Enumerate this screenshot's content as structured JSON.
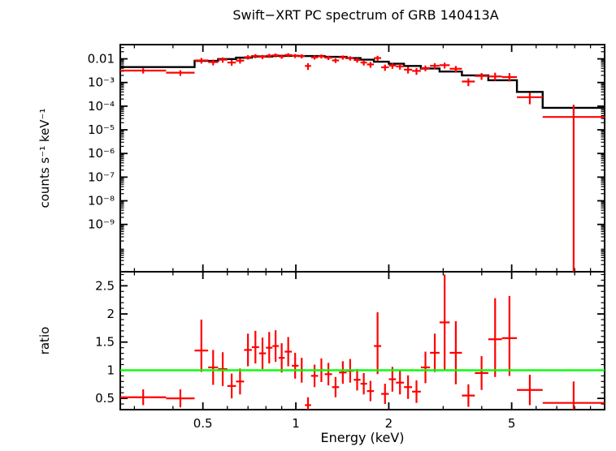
{
  "figure": {
    "title": "Swift−XRT PC spectrum of GRB 140413A",
    "xlabel": "Energy (keV)",
    "ylabel_top": "counts s⁻¹ keV⁻¹",
    "ylabel_bottom": "ratio"
  },
  "colors": {
    "data": "#ff0000",
    "model": "#000000",
    "reference_line": "#00ff00",
    "axis": "#000000",
    "text": "#000000",
    "background": "#ffffff"
  },
  "chart_data": [
    {
      "type": "scatter",
      "name": "spectrum-panel",
      "title": "Swift−XRT PC spectrum of GRB 140413A",
      "xlabel": "Energy (keV)",
      "ylabel": "counts s⁻¹ keV⁻¹",
      "xscale": "log",
      "yscale": "log",
      "xlim": [
        0.27,
        10
      ],
      "ylim": [
        1e-11,
        0.04
      ],
      "xticks": [
        0.5,
        1,
        2,
        5
      ],
      "xtick_labels": [
        "0.5",
        "1",
        "2",
        "5"
      ],
      "xminor": [
        0.3,
        0.4,
        0.6,
        0.7,
        0.8,
        0.9,
        3,
        4,
        6,
        7,
        8,
        9
      ],
      "ytick_values": [
        0.01,
        0.001,
        0.0001,
        1e-05,
        1e-06,
        1e-07,
        1e-08,
        1e-09
      ],
      "ytick_labels": [
        "0.01",
        "10⁻³",
        "10⁻⁴",
        "10⁻⁵",
        "10⁻⁶",
        "10⁻⁷",
        "10⁻⁸",
        "10⁻⁹"
      ],
      "point_format": [
        "x_low_keV",
        "x_high_keV",
        "value",
        "err_low_value",
        "err_high_value"
      ],
      "points": [
        [
          0.27,
          0.38,
          0.0032,
          0.0024,
          0.004
        ],
        [
          0.38,
          0.47,
          0.0026,
          0.0019,
          0.0033
        ],
        [
          0.47,
          0.52,
          0.0086,
          0.0063,
          0.0109
        ],
        [
          0.52,
          0.56,
          0.0073,
          0.0053,
          0.0093
        ],
        [
          0.56,
          0.6,
          0.0092,
          0.0069,
          0.0115
        ],
        [
          0.6,
          0.64,
          0.007,
          0.0051,
          0.0089
        ],
        [
          0.64,
          0.68,
          0.0084,
          0.0063,
          0.0105
        ],
        [
          0.68,
          0.72,
          0.0118,
          0.0093,
          0.0143
        ],
        [
          0.72,
          0.76,
          0.0132,
          0.0106,
          0.0158
        ],
        [
          0.76,
          0.8,
          0.0122,
          0.0097,
          0.0147
        ],
        [
          0.8,
          0.84,
          0.0136,
          0.011,
          0.0162
        ],
        [
          0.84,
          0.88,
          0.0142,
          0.0115,
          0.0169
        ],
        [
          0.88,
          0.92,
          0.0126,
          0.0101,
          0.0151
        ],
        [
          0.92,
          0.97,
          0.0146,
          0.0119,
          0.0173
        ],
        [
          0.97,
          1.02,
          0.0134,
          0.0108,
          0.016
        ],
        [
          1.02,
          1.07,
          0.013,
          0.0105,
          0.0155
        ],
        [
          1.07,
          1.12,
          0.005,
          0.0034,
          0.0066
        ],
        [
          1.12,
          1.18,
          0.0116,
          0.0093,
          0.0139
        ],
        [
          1.18,
          1.24,
          0.0128,
          0.0103,
          0.0153
        ],
        [
          1.24,
          1.31,
          0.0112,
          0.0089,
          0.0135
        ],
        [
          1.31,
          1.38,
          0.0086,
          0.0067,
          0.0105
        ],
        [
          1.38,
          1.46,
          0.0116,
          0.0093,
          0.0139
        ],
        [
          1.46,
          1.54,
          0.0106,
          0.0084,
          0.0128
        ],
        [
          1.54,
          1.62,
          0.0089,
          0.0069,
          0.0109
        ],
        [
          1.62,
          1.7,
          0.007,
          0.0052,
          0.0088
        ],
        [
          1.7,
          1.79,
          0.0058,
          0.0042,
          0.0074
        ],
        [
          1.79,
          1.89,
          0.0108,
          0.0082,
          0.0134
        ],
        [
          1.89,
          2.0,
          0.0044,
          0.0031,
          0.0057
        ],
        [
          2.0,
          2.11,
          0.0052,
          0.0038,
          0.0066
        ],
        [
          2.11,
          2.24,
          0.0048,
          0.0035,
          0.0061
        ],
        [
          2.24,
          2.38,
          0.0035,
          0.0024,
          0.0046
        ],
        [
          2.38,
          2.54,
          0.0031,
          0.0021,
          0.0041
        ],
        [
          2.54,
          2.72,
          0.0041,
          0.003,
          0.0052
        ],
        [
          2.72,
          2.92,
          0.0051,
          0.0037,
          0.0065
        ],
        [
          2.92,
          3.15,
          0.0054,
          0.0039,
          0.0069
        ],
        [
          3.15,
          3.45,
          0.0038,
          0.0026,
          0.005
        ],
        [
          3.45,
          3.8,
          0.0011,
          0.0007,
          0.0015
        ],
        [
          3.8,
          4.2,
          0.0019,
          0.0013,
          0.0025
        ],
        [
          4.2,
          4.65,
          0.0018,
          0.0012,
          0.0026
        ],
        [
          4.65,
          5.2,
          0.0017,
          0.0011,
          0.0025
        ],
        [
          5.2,
          6.3,
          0.00024,
          0.00012,
          0.00037
        ],
        [
          6.3,
          10.0,
          3.5e-05,
          1e-11,
          0.000115
        ]
      ],
      "model_steps": [
        [
          0.27,
          0.47,
          0.0045
        ],
        [
          0.47,
          0.56,
          0.0082
        ],
        [
          0.56,
          0.64,
          0.0098
        ],
        [
          0.64,
          0.72,
          0.0112
        ],
        [
          0.72,
          0.84,
          0.0126
        ],
        [
          0.84,
          1.02,
          0.0134
        ],
        [
          1.02,
          1.24,
          0.0132
        ],
        [
          1.24,
          1.46,
          0.0122
        ],
        [
          1.46,
          1.62,
          0.0108
        ],
        [
          1.62,
          1.79,
          0.0092
        ],
        [
          1.79,
          2.0,
          0.0076
        ],
        [
          2.0,
          2.24,
          0.0062
        ],
        [
          2.24,
          2.54,
          0.005
        ],
        [
          2.54,
          2.92,
          0.0039
        ],
        [
          2.92,
          3.45,
          0.0029
        ],
        [
          3.45,
          4.2,
          0.002
        ],
        [
          4.2,
          5.2,
          0.00125
        ],
        [
          5.2,
          6.3,
          0.0004
        ],
        [
          6.3,
          10.0,
          8.5e-05
        ]
      ]
    },
    {
      "type": "scatter",
      "name": "ratio-panel",
      "xlabel": "Energy (keV)",
      "ylabel": "ratio",
      "xscale": "log",
      "yscale": "linear",
      "xlim": [
        0.27,
        10
      ],
      "ylim": [
        0.3,
        2.75
      ],
      "yticks": [
        0.5,
        1,
        1.5,
        2,
        2.5
      ],
      "ytick_labels": [
        "0.5",
        "1",
        "1.5",
        "2",
        "2.5"
      ],
      "reference_line": 1,
      "point_format": [
        "x_low_keV",
        "x_high_keV",
        "ratio",
        "err_low",
        "err_high"
      ],
      "points": [
        [
          0.27,
          0.38,
          0.52,
          0.38,
          0.66
        ],
        [
          0.38,
          0.47,
          0.5,
          0.34,
          0.66
        ],
        [
          0.47,
          0.52,
          1.35,
          0.97,
          1.9
        ],
        [
          0.52,
          0.56,
          1.05,
          0.74,
          1.36
        ],
        [
          0.56,
          0.6,
          1.02,
          0.72,
          1.32
        ],
        [
          0.6,
          0.64,
          0.72,
          0.5,
          0.94
        ],
        [
          0.64,
          0.68,
          0.8,
          0.57,
          1.03
        ],
        [
          0.68,
          0.72,
          1.36,
          1.07,
          1.65
        ],
        [
          0.72,
          0.76,
          1.41,
          1.12,
          1.7
        ],
        [
          0.76,
          0.8,
          1.3,
          1.02,
          1.58
        ],
        [
          0.8,
          0.84,
          1.4,
          1.12,
          1.68
        ],
        [
          0.84,
          0.88,
          1.43,
          1.15,
          1.71
        ],
        [
          0.88,
          0.92,
          1.22,
          0.96,
          1.48
        ],
        [
          0.92,
          0.97,
          1.33,
          1.07,
          1.59
        ],
        [
          0.97,
          1.02,
          1.08,
          0.85,
          1.31
        ],
        [
          1.02,
          1.07,
          1.0,
          0.78,
          1.22
        ],
        [
          1.07,
          1.12,
          0.38,
          0.24,
          0.52
        ],
        [
          1.12,
          1.18,
          0.9,
          0.7,
          1.1
        ],
        [
          1.18,
          1.24,
          1.0,
          0.79,
          1.21
        ],
        [
          1.24,
          1.31,
          0.93,
          0.73,
          1.13
        ],
        [
          1.31,
          1.38,
          0.7,
          0.52,
          0.88
        ],
        [
          1.38,
          1.46,
          0.96,
          0.76,
          1.16
        ],
        [
          1.46,
          1.54,
          0.99,
          0.78,
          1.2
        ],
        [
          1.54,
          1.62,
          0.83,
          0.64,
          1.02
        ],
        [
          1.62,
          1.7,
          0.76,
          0.57,
          0.95
        ],
        [
          1.7,
          1.79,
          0.63,
          0.45,
          0.81
        ],
        [
          1.79,
          1.89,
          1.43,
          0.93,
          2.03
        ],
        [
          1.89,
          2.0,
          0.58,
          0.4,
          0.76
        ],
        [
          2.0,
          2.11,
          0.84,
          0.62,
          1.06
        ],
        [
          2.11,
          2.24,
          0.78,
          0.57,
          0.99
        ],
        [
          2.24,
          2.38,
          0.7,
          0.49,
          0.91
        ],
        [
          2.38,
          2.54,
          0.62,
          0.42,
          0.82
        ],
        [
          2.54,
          2.72,
          1.05,
          0.77,
          1.33
        ],
        [
          2.72,
          2.92,
          1.31,
          0.97,
          1.65
        ],
        [
          2.92,
          3.15,
          1.85,
          1.0,
          2.7
        ],
        [
          3.15,
          3.45,
          1.31,
          0.75,
          1.87
        ],
        [
          3.45,
          3.8,
          0.55,
          0.35,
          0.75
        ],
        [
          3.8,
          4.2,
          0.95,
          0.65,
          1.25
        ],
        [
          4.2,
          4.65,
          1.55,
          0.88,
          2.28
        ],
        [
          4.65,
          5.2,
          1.57,
          0.9,
          2.32
        ],
        [
          5.2,
          6.3,
          0.65,
          0.38,
          0.92
        ],
        [
          6.3,
          10.0,
          0.42,
          0.3,
          0.8
        ]
      ]
    }
  ]
}
